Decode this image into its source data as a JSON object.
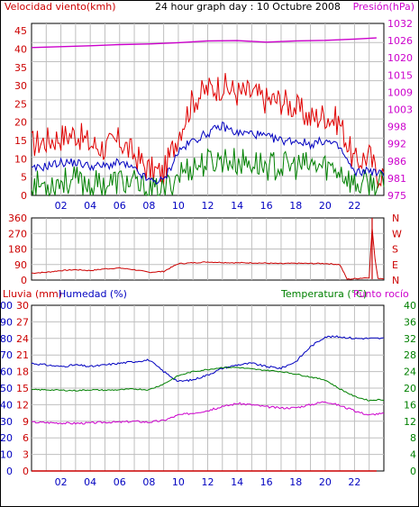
{
  "colors": {
    "wind": "#e00000",
    "wind_avg": "#0000c0",
    "gust": "#008000",
    "pressure": "#cc00cc",
    "direction": "#cc0000",
    "rain": "#cc0000",
    "humidity": "#0000c0",
    "temperature": "#008000",
    "dewpoint": "#cc00cc",
    "grid": "#bfbfbf",
    "axis_text_left": "#cc0000",
    "axis_text_right": "#cc00cc"
  },
  "chart_data": [
    {
      "type": "line",
      "title": "24 hour graph day : 10 Octubre 2008",
      "left_axis_label": "Velocidad viento(kmh)",
      "right_axis_label": "Presión(hPa)",
      "x_ticks": [
        "02",
        "04",
        "06",
        "08",
        "10",
        "12",
        "14",
        "16",
        "18",
        "20",
        "22"
      ],
      "y_left_ticks": [
        "0",
        "5",
        "10",
        "15",
        "20",
        "25",
        "30",
        "35",
        "40",
        "45"
      ],
      "y_left_range": [
        0,
        47
      ],
      "y_right_ticks": [
        "975",
        "981",
        "986",
        "992",
        "998",
        "1003",
        "1009",
        "1015",
        "1020",
        "1026",
        "1032"
      ],
      "y_right_range": [
        975,
        1032
      ],
      "series": [
        {
          "key": "gust",
          "hours": [
            0,
            1,
            2,
            3,
            4,
            5,
            6,
            7,
            8,
            9,
            10,
            11,
            12,
            13,
            14,
            15,
            16,
            17,
            18,
            19,
            20,
            21,
            22,
            23,
            23.5
          ],
          "values": [
            14,
            15,
            16,
            17,
            14,
            13,
            15,
            11,
            7,
            6,
            17,
            26,
            29,
            30,
            28,
            28,
            26,
            26,
            24,
            21,
            22,
            20,
            9,
            11,
            6
          ]
        },
        {
          "key": "avg",
          "hours": [
            0,
            1,
            2,
            3,
            4,
            5,
            6,
            7,
            8,
            9,
            10,
            11,
            12,
            13,
            14,
            15,
            16,
            17,
            18,
            19,
            20,
            21,
            22,
            23,
            23.5
          ],
          "values": [
            7,
            8,
            9,
            9,
            8,
            8,
            9,
            7,
            4,
            4,
            12,
            15,
            17,
            19,
            17,
            17,
            16,
            15,
            15,
            14,
            15,
            13,
            6,
            7,
            6
          ]
        },
        {
          "key": "low",
          "hours": [
            0,
            1,
            2,
            3,
            4,
            5,
            6,
            7,
            8,
            9,
            10,
            11,
            12,
            13,
            14,
            15,
            16,
            17,
            18,
            19,
            20,
            21,
            22,
            23,
            23.5
          ],
          "values": [
            3,
            3,
            4,
            4,
            3,
            3,
            4,
            3,
            1,
            1,
            6,
            8,
            9,
            10,
            9,
            9,
            8,
            8,
            8,
            8,
            8,
            7,
            3,
            3,
            3
          ]
        },
        {
          "key": "pressure",
          "hours": [
            0,
            2,
            4,
            6,
            8,
            10,
            12,
            14,
            16,
            18,
            20,
            22,
            23.5
          ],
          "values": [
            1024,
            1024.3,
            1024.6,
            1025,
            1025.2,
            1025.6,
            1026.2,
            1026.3,
            1025.8,
            1026.2,
            1026.4,
            1026.8,
            1027.2
          ]
        }
      ]
    },
    {
      "type": "line",
      "right_axis_label": "N W S E N",
      "y_left_ticks": [
        "0",
        "90",
        "180",
        "270",
        "360"
      ],
      "y_left_range": [
        0,
        360
      ],
      "y_right_ticks": [
        "N",
        "E",
        "S",
        "W",
        "N"
      ],
      "series": [
        {
          "key": "direction",
          "hours": [
            0,
            1,
            2,
            3,
            4,
            5,
            6,
            7,
            8,
            9,
            10,
            11,
            12,
            13,
            14,
            15,
            16,
            17,
            18,
            19,
            20,
            21,
            21.5,
            22,
            23,
            23.2,
            23.4,
            23.6
          ],
          "values": [
            40,
            45,
            55,
            60,
            55,
            65,
            70,
            60,
            45,
            50,
            95,
            100,
            105,
            102,
            100,
            100,
            98,
            95,
            97,
            96,
            96,
            90,
            5,
            8,
            15,
            360,
            120,
            10
          ]
        }
      ]
    },
    {
      "type": "line",
      "left_axis_label": "Lluvia (mm)",
      "left_axis_label2": "Humedad (%)",
      "right_axis_label": "Temperatura (°C)",
      "right_axis_label2": "Punto rocío",
      "y_left_ticks_rain": [
        "0",
        "3",
        "6",
        "9",
        "12",
        "15",
        "18",
        "21",
        "24",
        "27",
        "30"
      ],
      "y_left_ticks_hum": [
        "0",
        "10",
        "20",
        "30",
        "40",
        "50",
        "60",
        "70",
        "80",
        "90",
        "100"
      ],
      "y_left_range": [
        0,
        100
      ],
      "y_right_ticks": [
        "0",
        "4",
        "8",
        "12",
        "16",
        "20",
        "24",
        "28",
        "32",
        "36",
        "40"
      ],
      "y_right_range": [
        0,
        40
      ],
      "series": [
        {
          "key": "humidity",
          "hours": [
            0,
            1,
            2,
            3,
            4,
            5,
            6,
            7,
            8,
            9,
            10,
            11,
            12,
            13,
            14,
            15,
            16,
            17,
            18,
            19,
            20,
            21,
            22,
            23,
            23.5
          ],
          "values": [
            65,
            64,
            63,
            64,
            63,
            64,
            65,
            66,
            67,
            60,
            54,
            55,
            58,
            62,
            64,
            65,
            63,
            62,
            66,
            75,
            81,
            81,
            80,
            80,
            80
          ]
        },
        {
          "key": "rain",
          "hours": [
            0,
            23.5
          ],
          "values": [
            0,
            0
          ]
        },
        {
          "key": "temperature",
          "hours": [
            0,
            1,
            2,
            3,
            4,
            5,
            6,
            7,
            8,
            9,
            10,
            11,
            12,
            13,
            14,
            15,
            16,
            17,
            18,
            19,
            20,
            21,
            22,
            23,
            23.5
          ],
          "values": [
            19.6,
            19.6,
            19.5,
            19.4,
            19.6,
            19.5,
            19.6,
            19.8,
            19.6,
            21,
            23,
            24,
            24.5,
            25,
            25,
            24.6,
            24.3,
            24,
            23.4,
            22.7,
            22,
            19.8,
            18,
            17,
            17.2
          ]
        },
        {
          "key": "dewpoint",
          "hours": [
            0,
            1,
            2,
            3,
            4,
            5,
            6,
            7,
            8,
            9,
            10,
            11,
            12,
            13,
            14,
            15,
            16,
            17,
            18,
            19,
            20,
            21,
            22,
            23,
            23.5
          ],
          "values": [
            11.8,
            11.7,
            11.6,
            11.5,
            11.6,
            11.8,
            11.8,
            12,
            11.8,
            12.2,
            13.5,
            14,
            14.6,
            15.5,
            16.3,
            16,
            15.5,
            15.2,
            15.3,
            16,
            16.8,
            15.8,
            14.5,
            13.5,
            13.8
          ]
        }
      ]
    }
  ]
}
